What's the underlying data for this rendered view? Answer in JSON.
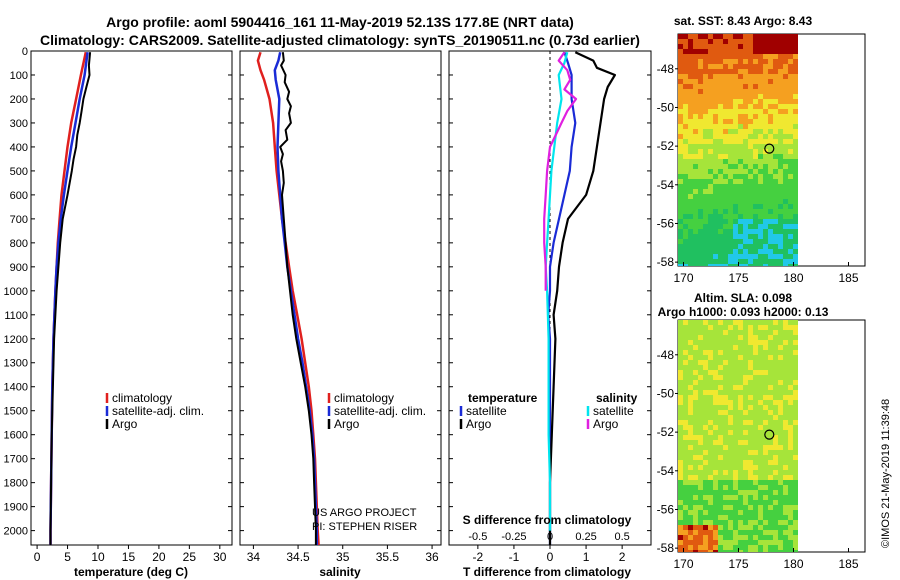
{
  "header": {
    "line1": "Argo profile: aoml 5904416_161 11-May-2019 52.13S 177.8E (NRT data)",
    "line2": "Climatology: CARS2009. Satellite-adjusted climatology: synTS_20190511.nc (0.73d earlier)"
  },
  "colors": {
    "climatology": "#e0201e",
    "satellite": "#1a2bd6",
    "argo": "#000000",
    "sal_sat": "#00e5ee",
    "sal_argo": "#e020e0"
  },
  "credit": {
    "line1": "US ARGO PROJECT",
    "line2": "PI: STEPHEN RISER"
  },
  "stamp": "©IMOS 21-May-2019 11:39:48",
  "depth_ticks": [
    "0",
    "100",
    "200",
    "300",
    "400",
    "500",
    "600",
    "700",
    "800",
    "900",
    "1000",
    "1100",
    "1200",
    "1300",
    "1400",
    "1500",
    "1600",
    "1700",
    "1800",
    "1900",
    "2000"
  ],
  "chart_data": [
    {
      "type": "line",
      "name": "temperature",
      "xlabel": "temperature (deg C)",
      "ylabel": "depth",
      "xlim": [
        -1,
        32
      ],
      "ylim": [
        2060,
        0
      ],
      "xticks": [
        0,
        5,
        10,
        15,
        20,
        25,
        30
      ],
      "xtick_labels": [
        "0",
        "5",
        "10",
        "15",
        "20",
        "25",
        "30"
      ],
      "legend": [
        "climatology",
        "satellite-adj. clim.",
        "Argo"
      ],
      "series": [
        {
          "name": "climatology",
          "color": "#e0201e",
          "depth": [
            5,
            100,
            200,
            300,
            400,
            500,
            600,
            700,
            800,
            900,
            1000,
            1200,
            1400,
            1600,
            1800,
            2000,
            2060
          ],
          "values": [
            8.0,
            7.2,
            6.4,
            5.6,
            5.0,
            4.5,
            4.0,
            3.7,
            3.4,
            3.2,
            3.0,
            2.7,
            2.5,
            2.4,
            2.3,
            2.2,
            2.2
          ]
        },
        {
          "name": "satellite-adj. clim.",
          "color": "#1a2bd6",
          "depth": [
            5,
            100,
            200,
            300,
            400,
            500,
            600,
            700,
            800,
            900,
            1000,
            1200,
            1400,
            1600,
            1800,
            2000,
            2060
          ],
          "values": [
            8.3,
            7.8,
            7.0,
            6.3,
            5.6,
            5.0,
            4.4,
            3.9,
            3.5,
            3.2,
            3.0,
            2.7,
            2.5,
            2.4,
            2.3,
            2.2,
            2.2
          ]
        },
        {
          "name": "Argo",
          "color": "#000000",
          "depth": [
            5,
            60,
            100,
            150,
            200,
            250,
            300,
            350,
            400,
            450,
            500,
            600,
            700,
            800,
            900,
            1000,
            1200,
            1400,
            1600,
            1800,
            2000,
            2060
          ],
          "values": [
            8.7,
            8.5,
            8.6,
            8.1,
            7.6,
            7.3,
            7.0,
            6.6,
            6.4,
            6.0,
            5.7,
            5.0,
            4.2,
            3.8,
            3.5,
            3.2,
            2.8,
            2.6,
            2.4,
            2.3,
            2.2,
            2.2
          ]
        }
      ]
    },
    {
      "type": "line",
      "name": "salinity",
      "xlabel": "salinity",
      "ylabel": "depth",
      "xlim": [
        33.85,
        36.1
      ],
      "ylim": [
        2060,
        0
      ],
      "xticks": [
        34,
        34.5,
        35,
        35.5,
        36
      ],
      "xtick_labels": [
        "34",
        "34.5",
        "35",
        "35.5",
        "36"
      ],
      "legend": [
        "climatology",
        "satellite-adj. clim.",
        "Argo"
      ],
      "series": [
        {
          "name": "climatology",
          "color": "#e0201e",
          "depth": [
            5,
            40,
            80,
            120,
            160,
            200,
            300,
            400,
            500,
            600,
            700,
            800,
            900,
            1000,
            1100,
            1200,
            1300,
            1400,
            1500,
            1600,
            1700,
            1800,
            1900,
            2000,
            2060
          ],
          "values": [
            34.08,
            34.05,
            34.08,
            34.12,
            34.15,
            34.18,
            34.22,
            34.24,
            34.26,
            34.29,
            34.32,
            34.36,
            34.4,
            34.44,
            34.49,
            34.54,
            34.58,
            34.62,
            34.65,
            34.67,
            34.69,
            34.7,
            34.71,
            34.72,
            34.73
          ]
        },
        {
          "name": "satellite-adj. clim.",
          "color": "#1a2bd6",
          "depth": [
            5,
            40,
            80,
            120,
            160,
            200,
            300,
            400,
            500,
            600,
            700,
            800,
            900,
            1000,
            1100,
            1200,
            1300,
            1400,
            1500,
            1600,
            1700,
            1800,
            1900,
            2000,
            2060
          ],
          "values": [
            34.3,
            34.28,
            34.24,
            34.25,
            34.27,
            34.29,
            34.28,
            34.27,
            34.28,
            34.3,
            34.32,
            34.35,
            34.38,
            34.42,
            34.46,
            34.5,
            34.55,
            34.59,
            34.63,
            34.66,
            34.68,
            34.69,
            34.7,
            34.71,
            34.71
          ]
        },
        {
          "name": "Argo",
          "color": "#000000",
          "depth": [
            5,
            40,
            60,
            100,
            130,
            170,
            200,
            230,
            260,
            300,
            330,
            370,
            400,
            430,
            460,
            500,
            550,
            600,
            700,
            800,
            900,
            1000,
            1100,
            1200,
            1300,
            1400,
            1500,
            1600,
            1700,
            1800,
            1900,
            2000,
            2060
          ],
          "values": [
            34.33,
            34.34,
            34.31,
            34.36,
            34.35,
            34.4,
            34.38,
            34.42,
            34.4,
            34.42,
            34.36,
            34.38,
            34.3,
            34.33,
            34.31,
            34.33,
            34.34,
            34.32,
            34.34,
            34.36,
            34.38,
            34.41,
            34.44,
            34.48,
            34.53,
            34.58,
            34.62,
            34.65,
            34.67,
            34.68,
            34.69,
            34.7,
            34.7
          ]
        }
      ]
    },
    {
      "type": "line",
      "name": "T and S difference from climatology",
      "xlabel": "T difference from climatology",
      "x2label": "S difference from climatology",
      "ylabel": "depth",
      "xlim": [
        -2.8,
        2.8
      ],
      "ylim": [
        2060,
        0
      ],
      "xticks": [
        -2,
        -1,
        0,
        1,
        2
      ],
      "xtick_labels": [
        "-2",
        "-1",
        "0",
        "1",
        "2"
      ],
      "x2ticks": [
        -0.5,
        -0.25,
        0,
        0.25,
        0.5
      ],
      "x2tick_labels": [
        "-0.5",
        "-0.25",
        "0",
        "0.25",
        "0.5"
      ],
      "x2lim": [
        -0.7,
        0.7
      ],
      "legend_left_title": "temperature",
      "legend_right_title": "salinity",
      "legend_left": [
        "satellite",
        "Argo"
      ],
      "legend_right": [
        "satellite",
        "Argo"
      ],
      "series": [
        {
          "name": "temperature satellite",
          "axis": "T",
          "color": "#1a2bd6",
          "depth": [
            5,
            50,
            100,
            200,
            300,
            400,
            500,
            600,
            700,
            800,
            900,
            1000,
            1100,
            1200,
            1400,
            1600,
            1800,
            2000,
            2060
          ],
          "values": [
            0.4,
            0.5,
            0.6,
            0.6,
            0.7,
            0.6,
            0.55,
            0.4,
            0.25,
            0.1,
            0.0,
            0.0,
            -0.05,
            0.0,
            0.0,
            0.0,
            0.0,
            0.0,
            0.0
          ]
        },
        {
          "name": "temperature Argo",
          "axis": "T",
          "color": "#000000",
          "depth": [
            5,
            40,
            70,
            100,
            150,
            200,
            300,
            400,
            500,
            600,
            700,
            800,
            900,
            1000,
            1100,
            1200,
            1400,
            1600,
            1800,
            2000,
            2060
          ],
          "values": [
            0.7,
            1.2,
            1.3,
            1.8,
            1.6,
            1.5,
            1.4,
            1.3,
            1.2,
            1.0,
            0.5,
            0.35,
            0.25,
            0.2,
            0.1,
            0.15,
            0.1,
            0.05,
            0.0,
            0.0,
            0.0
          ]
        },
        {
          "name": "salinity satellite",
          "axis": "S",
          "color": "#00e5ee",
          "depth": [
            5,
            50,
            100,
            200,
            300,
            400,
            500,
            600,
            700,
            800,
            900,
            1000,
            1200,
            1400,
            1600,
            1800,
            2000
          ],
          "values": [
            0.12,
            0.1,
            0.06,
            0.08,
            0.05,
            0.03,
            0.01,
            0.0,
            -0.01,
            -0.02,
            -0.03,
            -0.02,
            -0.01,
            -0.01,
            -0.01,
            0.0,
            0.0
          ]
        },
        {
          "name": "salinity Argo",
          "axis": "S",
          "color": "#e020e0",
          "depth": [
            5,
            40,
            80,
            120,
            160,
            200,
            250,
            300,
            350,
            400,
            500,
            600,
            700,
            800,
            900,
            1000
          ],
          "values": [
            0.1,
            0.06,
            0.12,
            0.14,
            0.1,
            0.18,
            0.12,
            0.08,
            0.04,
            0.0,
            -0.02,
            -0.03,
            -0.04,
            -0.04,
            -0.03,
            -0.03
          ]
        }
      ]
    },
    {
      "type": "heatmap",
      "name": "SST map",
      "title": "sat. SST: 8.43 Argo: 8.43",
      "xlim": [
        169.5,
        186.5
      ],
      "ylim": [
        -58.2,
        -46.2
      ],
      "xticks": [
        170,
        175,
        180,
        185
      ],
      "xtick_labels": [
        "170",
        "175",
        "180",
        "185"
      ],
      "yticks": [
        -48,
        -50,
        -52,
        -54,
        -56,
        -58
      ],
      "ytick_labels": [
        "-48",
        "-50",
        "-52",
        "-54",
        "-56",
        "-58"
      ],
      "marker": {
        "lon": 177.8,
        "lat": -52.13
      }
    },
    {
      "type": "heatmap",
      "name": "SLA map",
      "title_line1": "Altim. SLA: 0.098",
      "title_line2": "Argo h1000: 0.093 h2000: 0.13",
      "xlim": [
        169.5,
        186.5
      ],
      "ylim": [
        -58.2,
        -46.2
      ],
      "xticks": [
        170,
        175,
        180,
        185
      ],
      "xtick_labels": [
        "170",
        "175",
        "180",
        "185"
      ],
      "yticks": [
        -48,
        -50,
        -52,
        -54,
        -56,
        -58
      ],
      "ytick_labels": [
        "-48",
        "-50",
        "-52",
        "-54",
        "-56",
        "-58"
      ],
      "marker": {
        "lon": 177.8,
        "lat": -52.13
      }
    }
  ]
}
